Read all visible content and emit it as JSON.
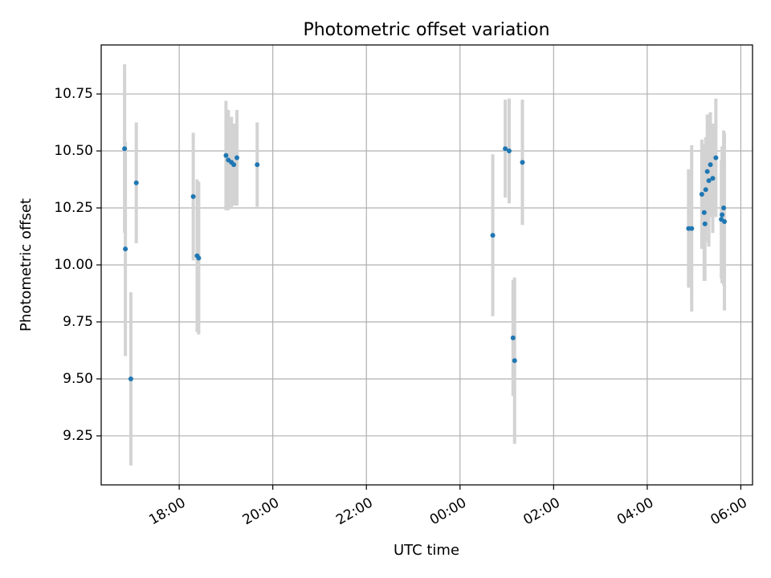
{
  "chart_data": {
    "type": "scatter",
    "title": "Photometric offset variation",
    "xlabel": "UTC time",
    "ylabel": "Photometric offset",
    "x_ticks": [
      "18:00",
      "20:00",
      "22:00",
      "00:00",
      "02:00",
      "04:00",
      "06:00"
    ],
    "y_ticks": [
      "9.25",
      "9.50",
      "9.75",
      "10.00",
      "10.25",
      "10.50",
      "10.75"
    ],
    "xlim": [
      "16:20",
      "06:15"
    ],
    "ylim": [
      9.035,
      10.965
    ],
    "grid": true,
    "colors": {
      "point": "#1f77b4",
      "errorbar": "#d3d3d3",
      "grid": "#b0b0b0"
    },
    "points": [
      {
        "x": "16:50",
        "y": 10.51,
        "err": 0.37
      },
      {
        "x": "16:51",
        "y": 10.07,
        "err": 0.47
      },
      {
        "x": "16:58",
        "y": 9.5,
        "err": 0.38
      },
      {
        "x": "17:05",
        "y": 10.36,
        "err": 0.265
      },
      {
        "x": "18:18",
        "y": 10.3,
        "err": 0.28
      },
      {
        "x": "18:23",
        "y": 10.04,
        "err": 0.335
      },
      {
        "x": "18:25",
        "y": 10.03,
        "err": 0.335
      },
      {
        "x": "19:00",
        "y": 10.48,
        "err": 0.24
      },
      {
        "x": "19:03",
        "y": 10.46,
        "err": 0.22
      },
      {
        "x": "19:07",
        "y": 10.45,
        "err": 0.2
      },
      {
        "x": "19:10",
        "y": 10.44,
        "err": 0.18
      },
      {
        "x": "19:14",
        "y": 10.47,
        "err": 0.21
      },
      {
        "x": "19:40",
        "y": 10.44,
        "err": 0.185
      },
      {
        "x": "00:42",
        "y": 10.13,
        "err": 0.355
      },
      {
        "x": "00:58",
        "y": 10.51,
        "err": 0.215
      },
      {
        "x": "01:03",
        "y": 10.5,
        "err": 0.23
      },
      {
        "x": "01:08",
        "y": 9.68,
        "err": 0.255
      },
      {
        "x": "01:10",
        "y": 9.58,
        "err": 0.365
      },
      {
        "x": "01:20",
        "y": 10.45,
        "err": 0.275
      },
      {
        "x": "04:53",
        "y": 10.16,
        "err": 0.26
      },
      {
        "x": "04:57",
        "y": 10.16,
        "err": 0.365
      },
      {
        "x": "05:10",
        "y": 10.31,
        "err": 0.24
      },
      {
        "x": "05:13",
        "y": 10.23,
        "err": 0.3
      },
      {
        "x": "05:14",
        "y": 10.18,
        "err": 0.25
      },
      {
        "x": "05:15",
        "y": 10.33,
        "err": 0.23
      },
      {
        "x": "05:17",
        "y": 10.41,
        "err": 0.25
      },
      {
        "x": "05:19",
        "y": 10.37,
        "err": 0.29
      },
      {
        "x": "05:21",
        "y": 10.44,
        "err": 0.23
      },
      {
        "x": "05:24",
        "y": 10.38,
        "err": 0.24
      },
      {
        "x": "05:28",
        "y": 10.47,
        "err": 0.26
      },
      {
        "x": "05:35",
        "y": 10.2,
        "err": 0.26
      },
      {
        "x": "05:36",
        "y": 10.22,
        "err": 0.3
      },
      {
        "x": "05:38",
        "y": 10.25,
        "err": 0.34
      },
      {
        "x": "05:39",
        "y": 10.19,
        "err": 0.39
      }
    ]
  }
}
